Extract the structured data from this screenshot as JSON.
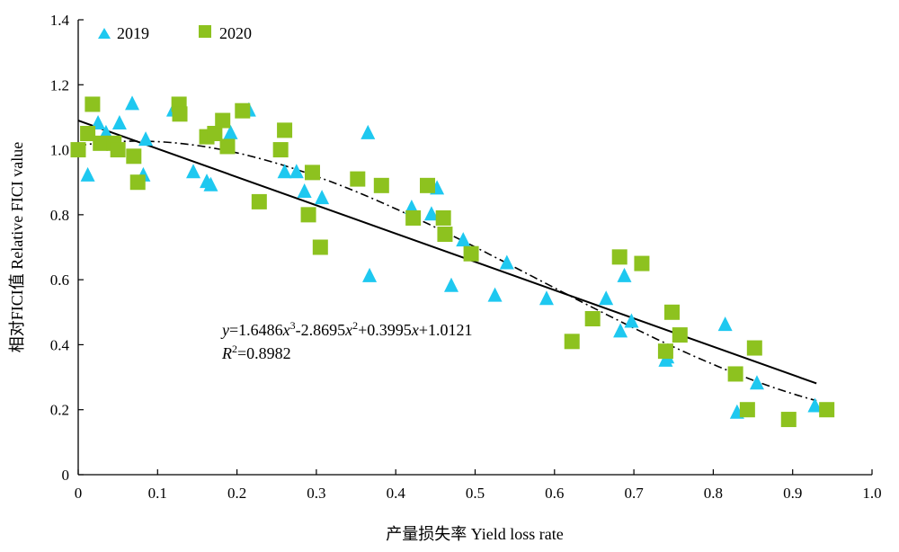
{
  "chart_data": {
    "type": "scatter",
    "xlabel": "产量损失率 Yield loss rate",
    "ylabel": "相对FICI值 Relative FICI value",
    "xlim": [
      0,
      1.0
    ],
    "ylim": [
      0,
      1.4
    ],
    "x_ticks": [
      "0",
      "0.1",
      "0.2",
      "0.3",
      "0.4",
      "0.5",
      "0.6",
      "0.7",
      "0.8",
      "0.9",
      "1.0"
    ],
    "y_ticks": [
      "0",
      "0.2",
      "0.4",
      "0.6",
      "0.8",
      "1.0",
      "1.2",
      "1.4"
    ],
    "grid": false,
    "legend_position": "top-left",
    "series": [
      {
        "name": "2019",
        "marker": "triangle",
        "color": "#1EC8F0",
        "points": [
          [
            0.012,
            0.92
          ],
          [
            0.025,
            1.08
          ],
          [
            0.035,
            1.05
          ],
          [
            0.052,
            1.08
          ],
          [
            0.068,
            1.14
          ],
          [
            0.082,
            0.92
          ],
          [
            0.085,
            1.03
          ],
          [
            0.12,
            1.12
          ],
          [
            0.145,
            0.93
          ],
          [
            0.162,
            0.9
          ],
          [
            0.167,
            0.89
          ],
          [
            0.192,
            1.05
          ],
          [
            0.215,
            1.12
          ],
          [
            0.26,
            0.93
          ],
          [
            0.275,
            0.93
          ],
          [
            0.285,
            0.87
          ],
          [
            0.307,
            0.85
          ],
          [
            0.365,
            1.05
          ],
          [
            0.367,
            0.61
          ],
          [
            0.42,
            0.82
          ],
          [
            0.445,
            0.8
          ],
          [
            0.452,
            0.88
          ],
          [
            0.47,
            0.58
          ],
          [
            0.485,
            0.72
          ],
          [
            0.525,
            0.55
          ],
          [
            0.54,
            0.65
          ],
          [
            0.59,
            0.54
          ],
          [
            0.665,
            0.54
          ],
          [
            0.683,
            0.44
          ],
          [
            0.688,
            0.61
          ],
          [
            0.697,
            0.47
          ],
          [
            0.74,
            0.35
          ],
          [
            0.742,
            0.36
          ],
          [
            0.815,
            0.46
          ],
          [
            0.83,
            0.19
          ],
          [
            0.855,
            0.28
          ],
          [
            0.928,
            0.21
          ]
        ]
      },
      {
        "name": "2020",
        "marker": "square",
        "color": "#8DC21F",
        "points": [
          [
            0.0,
            1.0
          ],
          [
            0.012,
            1.05
          ],
          [
            0.018,
            1.14
          ],
          [
            0.028,
            1.02
          ],
          [
            0.045,
            1.02
          ],
          [
            0.05,
            1.0
          ],
          [
            0.07,
            0.98
          ],
          [
            0.075,
            0.9
          ],
          [
            0.127,
            1.14
          ],
          [
            0.128,
            1.11
          ],
          [
            0.162,
            1.04
          ],
          [
            0.172,
            1.05
          ],
          [
            0.182,
            1.09
          ],
          [
            0.188,
            1.01
          ],
          [
            0.207,
            1.12
          ],
          [
            0.228,
            0.84
          ],
          [
            0.255,
            1.0
          ],
          [
            0.26,
            1.06
          ],
          [
            0.29,
            0.8
          ],
          [
            0.295,
            0.93
          ],
          [
            0.305,
            0.7
          ],
          [
            0.352,
            0.91
          ],
          [
            0.382,
            0.89
          ],
          [
            0.422,
            0.79
          ],
          [
            0.44,
            0.89
          ],
          [
            0.46,
            0.79
          ],
          [
            0.462,
            0.74
          ],
          [
            0.495,
            0.68
          ],
          [
            0.622,
            0.41
          ],
          [
            0.648,
            0.48
          ],
          [
            0.682,
            0.67
          ],
          [
            0.71,
            0.65
          ],
          [
            0.74,
            0.38
          ],
          [
            0.748,
            0.5
          ],
          [
            0.758,
            0.43
          ],
          [
            0.828,
            0.31
          ],
          [
            0.843,
            0.2
          ],
          [
            0.852,
            0.39
          ],
          [
            0.895,
            0.17
          ],
          [
            0.943,
            0.2
          ]
        ]
      }
    ],
    "fits": [
      {
        "kind": "linear",
        "style": "solid",
        "x_range": [
          0,
          0.93
        ],
        "intercept": 1.09,
        "slope": -0.87
      },
      {
        "kind": "cubic",
        "style": "dash-dot",
        "x_range": [
          0,
          0.93
        ],
        "coefficients": [
          1.6486,
          -2.8695,
          0.3995,
          1.0121
        ]
      }
    ],
    "annotation": {
      "y_label": "y",
      "eq_rest": "=1.6486",
      "x1": "x",
      "exp1": "3",
      "part2": "-2.8695",
      "x2": "x",
      "exp2": "2",
      "part3": "+0.3995",
      "x3": "x",
      "part4": "+1.0121",
      "r_label": "R",
      "r_exp": "2",
      "r_value": "=0.8982"
    }
  }
}
